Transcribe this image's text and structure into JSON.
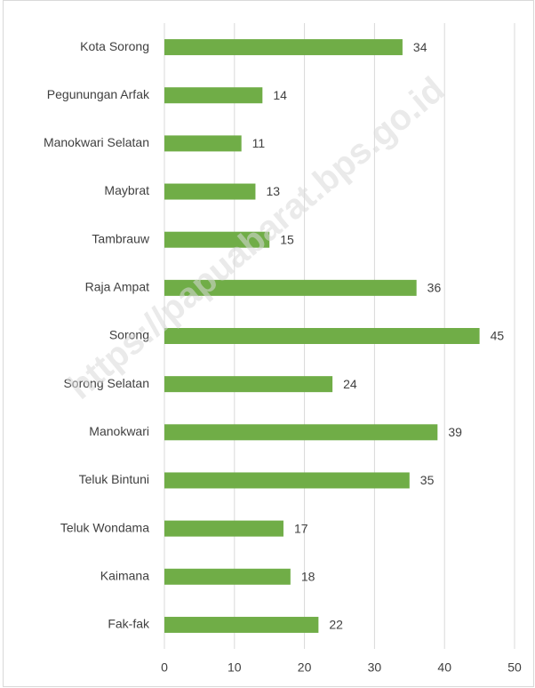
{
  "chart_data": {
    "type": "bar",
    "orientation": "horizontal",
    "categories": [
      "Kota Sorong",
      "Pegunungan Arfak",
      "Manokwari Selatan",
      "Maybrat",
      "Tambrauw",
      "Raja Ampat",
      "Sorong",
      "Sorong Selatan",
      "Manokwari",
      "Teluk Bintuni",
      "Teluk Wondama",
      "Kaimana",
      "Fak-fak"
    ],
    "values": [
      34,
      14,
      11,
      13,
      15,
      36,
      45,
      24,
      39,
      35,
      17,
      18,
      22
    ],
    "color": "#70ad47",
    "xlim": [
      0,
      50
    ],
    "xticks": [
      0,
      10,
      20,
      30,
      40,
      50
    ],
    "grid": true,
    "watermark": "https://papuabarat.bps.go.id"
  }
}
